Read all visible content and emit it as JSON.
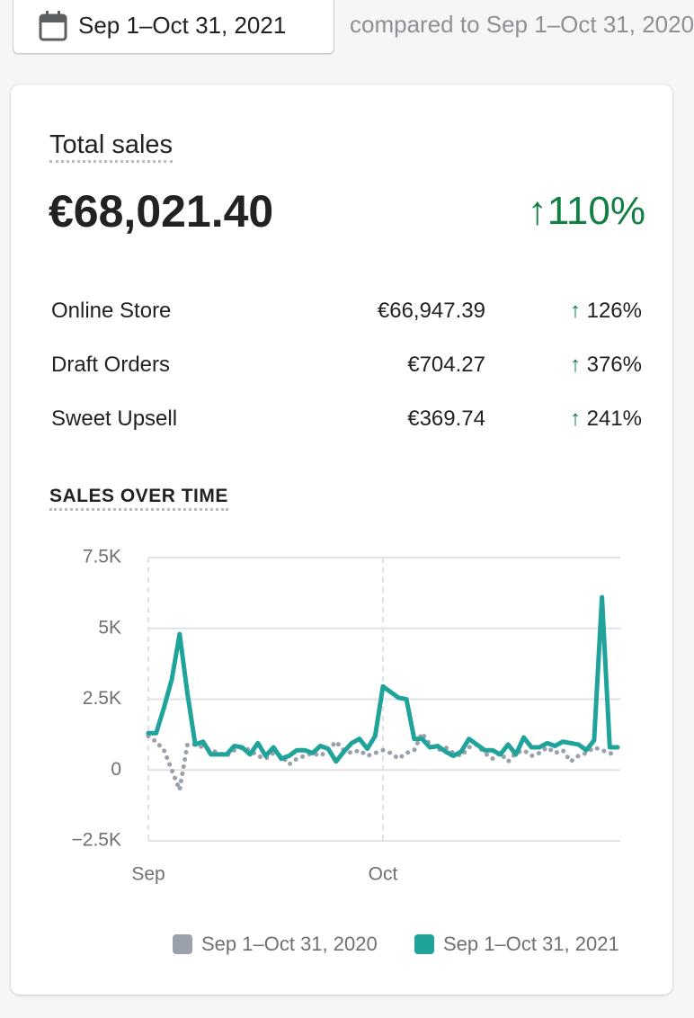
{
  "header": {
    "date_range": "Sep 1–Oct 31, 2021",
    "comparison": "compared to Sep 1–Oct 31, 2020"
  },
  "summary": {
    "title": "Total sales",
    "total": "€68,021.40",
    "change": "↑110%"
  },
  "breakdown": [
    {
      "channel": "Online Store",
      "amount": "€66,947.39",
      "change": "↑ 126%"
    },
    {
      "channel": "Draft Orders",
      "amount": "€704.27",
      "change": "↑ 376%"
    },
    {
      "channel": "Sweet Upsell",
      "amount": "€369.74",
      "change": "↑ 241%"
    }
  ],
  "chart_data": {
    "type": "line",
    "title": "SALES OVER TIME",
    "categories": [
      "Sep",
      null,
      null,
      null,
      null,
      null,
      null,
      null,
      null,
      null,
      null,
      null,
      null,
      null,
      null,
      null,
      null,
      null,
      null,
      null,
      null,
      null,
      null,
      null,
      null,
      null,
      null,
      null,
      null,
      null,
      "Oct",
      null,
      null,
      null,
      null,
      null,
      null,
      null,
      null,
      null,
      null,
      null,
      null,
      null,
      null,
      null,
      null,
      null,
      null,
      null,
      null,
      null,
      null,
      null,
      null,
      null,
      null,
      null,
      null,
      null,
      null
    ],
    "series": [
      {
        "name": "Sep 1–Oct 31, 2020",
        "color": "#9aa1ab",
        "dashed": true,
        "values": [
          1200,
          1000,
          700,
          0,
          -700,
          900,
          900,
          800,
          700,
          600,
          500,
          700,
          800,
          700,
          500,
          400,
          600,
          500,
          200,
          400,
          500,
          600,
          500,
          700,
          1000,
          700,
          600,
          700,
          500,
          600,
          700,
          600,
          400,
          600,
          700,
          1300,
          900,
          700,
          800,
          600,
          500,
          800,
          900,
          600,
          400,
          600,
          300,
          600,
          700,
          500,
          600,
          800,
          600,
          700,
          300,
          500,
          600,
          800,
          700,
          600,
          500
        ]
      },
      {
        "name": "Sep 1–Oct 31, 2021",
        "color": "#1fa39b",
        "dashed": false,
        "values": [
          1300,
          1300,
          2200,
          3200,
          4800,
          2700,
          900,
          1000,
          550,
          550,
          550,
          850,
          800,
          550,
          950,
          500,
          800,
          400,
          500,
          700,
          700,
          600,
          850,
          750,
          300,
          650,
          950,
          1100,
          750,
          1200,
          2950,
          2750,
          2550,
          2500,
          1100,
          1100,
          800,
          850,
          650,
          500,
          650,
          1100,
          900,
          700,
          700,
          550,
          900,
          550,
          1150,
          800,
          800,
          950,
          850,
          1000,
          950,
          900,
          700,
          1050,
          6100,
          800,
          800
        ]
      }
    ],
    "ylim": [
      -2500,
      7500
    ],
    "yticks": [
      {
        "value": -2500,
        "label": "−2.5K"
      },
      0,
      {
        "value": 2500,
        "label": "2.5K"
      },
      {
        "value": 5000,
        "label": "5K"
      },
      {
        "value": 7500,
        "label": "7.5K"
      }
    ],
    "grid": true,
    "legend": "bottom-right"
  }
}
